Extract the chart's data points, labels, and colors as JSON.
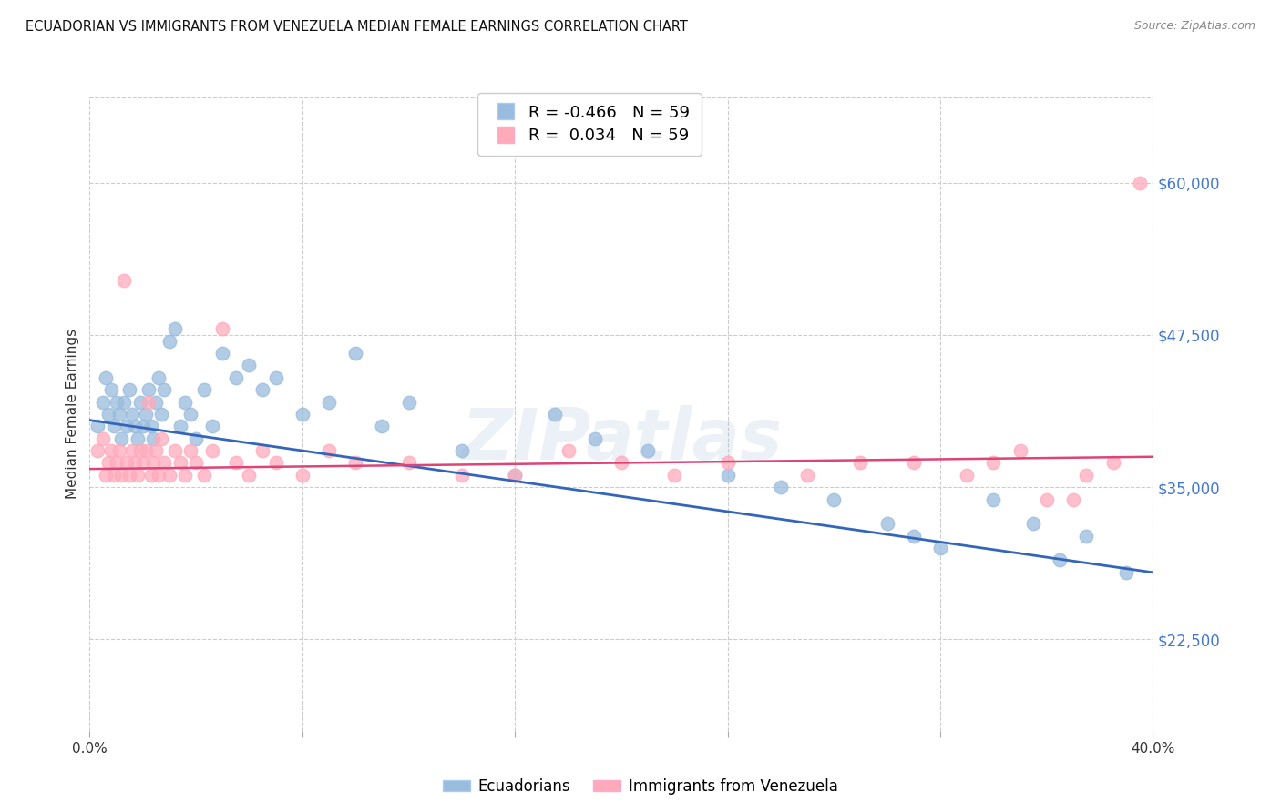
{
  "title": "ECUADORIAN VS IMMIGRANTS FROM VENEZUELA MEDIAN FEMALE EARNINGS CORRELATION CHART",
  "source": "Source: ZipAtlas.com",
  "ylabel": "Median Female Earnings",
  "ytick_labels": [
    "$22,500",
    "$35,000",
    "$47,500",
    "$60,000"
  ],
  "ytick_values": [
    22500,
    35000,
    47500,
    60000
  ],
  "ymin": 15000,
  "ymax": 67000,
  "xmin": 0.0,
  "xmax": 0.4,
  "legend_blue_r": "-0.466",
  "legend_blue_n": "59",
  "legend_pink_r": "0.034",
  "legend_pink_n": "59",
  "legend_label_blue": "Ecuadorians",
  "legend_label_pink": "Immigrants from Venezuela",
  "blue_color": "#99BBDD",
  "pink_color": "#FFAABB",
  "blue_line_color": "#3366BB",
  "pink_line_color": "#DD4477",
  "watermark": "ZIPatlas",
  "blue_scatter_x": [
    0.003,
    0.005,
    0.006,
    0.007,
    0.008,
    0.009,
    0.01,
    0.011,
    0.012,
    0.013,
    0.014,
    0.015,
    0.016,
    0.017,
    0.018,
    0.019,
    0.02,
    0.021,
    0.022,
    0.023,
    0.024,
    0.025,
    0.026,
    0.027,
    0.028,
    0.03,
    0.032,
    0.034,
    0.036,
    0.038,
    0.04,
    0.043,
    0.046,
    0.05,
    0.055,
    0.06,
    0.065,
    0.07,
    0.08,
    0.09,
    0.1,
    0.11,
    0.12,
    0.14,
    0.16,
    0.175,
    0.19,
    0.21,
    0.24,
    0.26,
    0.28,
    0.3,
    0.31,
    0.32,
    0.34,
    0.355,
    0.365,
    0.375,
    0.39
  ],
  "blue_scatter_y": [
    40000,
    42000,
    44000,
    41000,
    43000,
    40000,
    42000,
    41000,
    39000,
    42000,
    40000,
    43000,
    41000,
    40000,
    39000,
    42000,
    40000,
    41000,
    43000,
    40000,
    39000,
    42000,
    44000,
    41000,
    43000,
    47000,
    48000,
    40000,
    42000,
    41000,
    39000,
    43000,
    40000,
    46000,
    44000,
    45000,
    43000,
    44000,
    41000,
    42000,
    46000,
    40000,
    42000,
    38000,
    36000,
    41000,
    39000,
    38000,
    36000,
    35000,
    34000,
    32000,
    31000,
    30000,
    34000,
    32000,
    29000,
    31000,
    28000
  ],
  "pink_scatter_x": [
    0.003,
    0.005,
    0.006,
    0.007,
    0.008,
    0.009,
    0.01,
    0.011,
    0.012,
    0.013,
    0.014,
    0.015,
    0.016,
    0.017,
    0.018,
    0.019,
    0.02,
    0.021,
    0.022,
    0.023,
    0.024,
    0.025,
    0.026,
    0.027,
    0.028,
    0.03,
    0.032,
    0.034,
    0.036,
    0.038,
    0.04,
    0.043,
    0.046,
    0.05,
    0.055,
    0.06,
    0.065,
    0.07,
    0.08,
    0.09,
    0.1,
    0.12,
    0.14,
    0.16,
    0.18,
    0.2,
    0.22,
    0.24,
    0.27,
    0.29,
    0.31,
    0.33,
    0.34,
    0.35,
    0.36,
    0.37,
    0.375,
    0.385,
    0.395
  ],
  "pink_scatter_y": [
    38000,
    39000,
    36000,
    37000,
    38000,
    36000,
    37000,
    38000,
    36000,
    52000,
    37000,
    36000,
    38000,
    37000,
    36000,
    38000,
    37000,
    38000,
    42000,
    36000,
    37000,
    38000,
    36000,
    39000,
    37000,
    36000,
    38000,
    37000,
    36000,
    38000,
    37000,
    36000,
    38000,
    48000,
    37000,
    36000,
    38000,
    37000,
    36000,
    38000,
    37000,
    37000,
    36000,
    36000,
    38000,
    37000,
    36000,
    37000,
    36000,
    37000,
    37000,
    36000,
    37000,
    38000,
    34000,
    34000,
    36000,
    37000,
    60000
  ]
}
